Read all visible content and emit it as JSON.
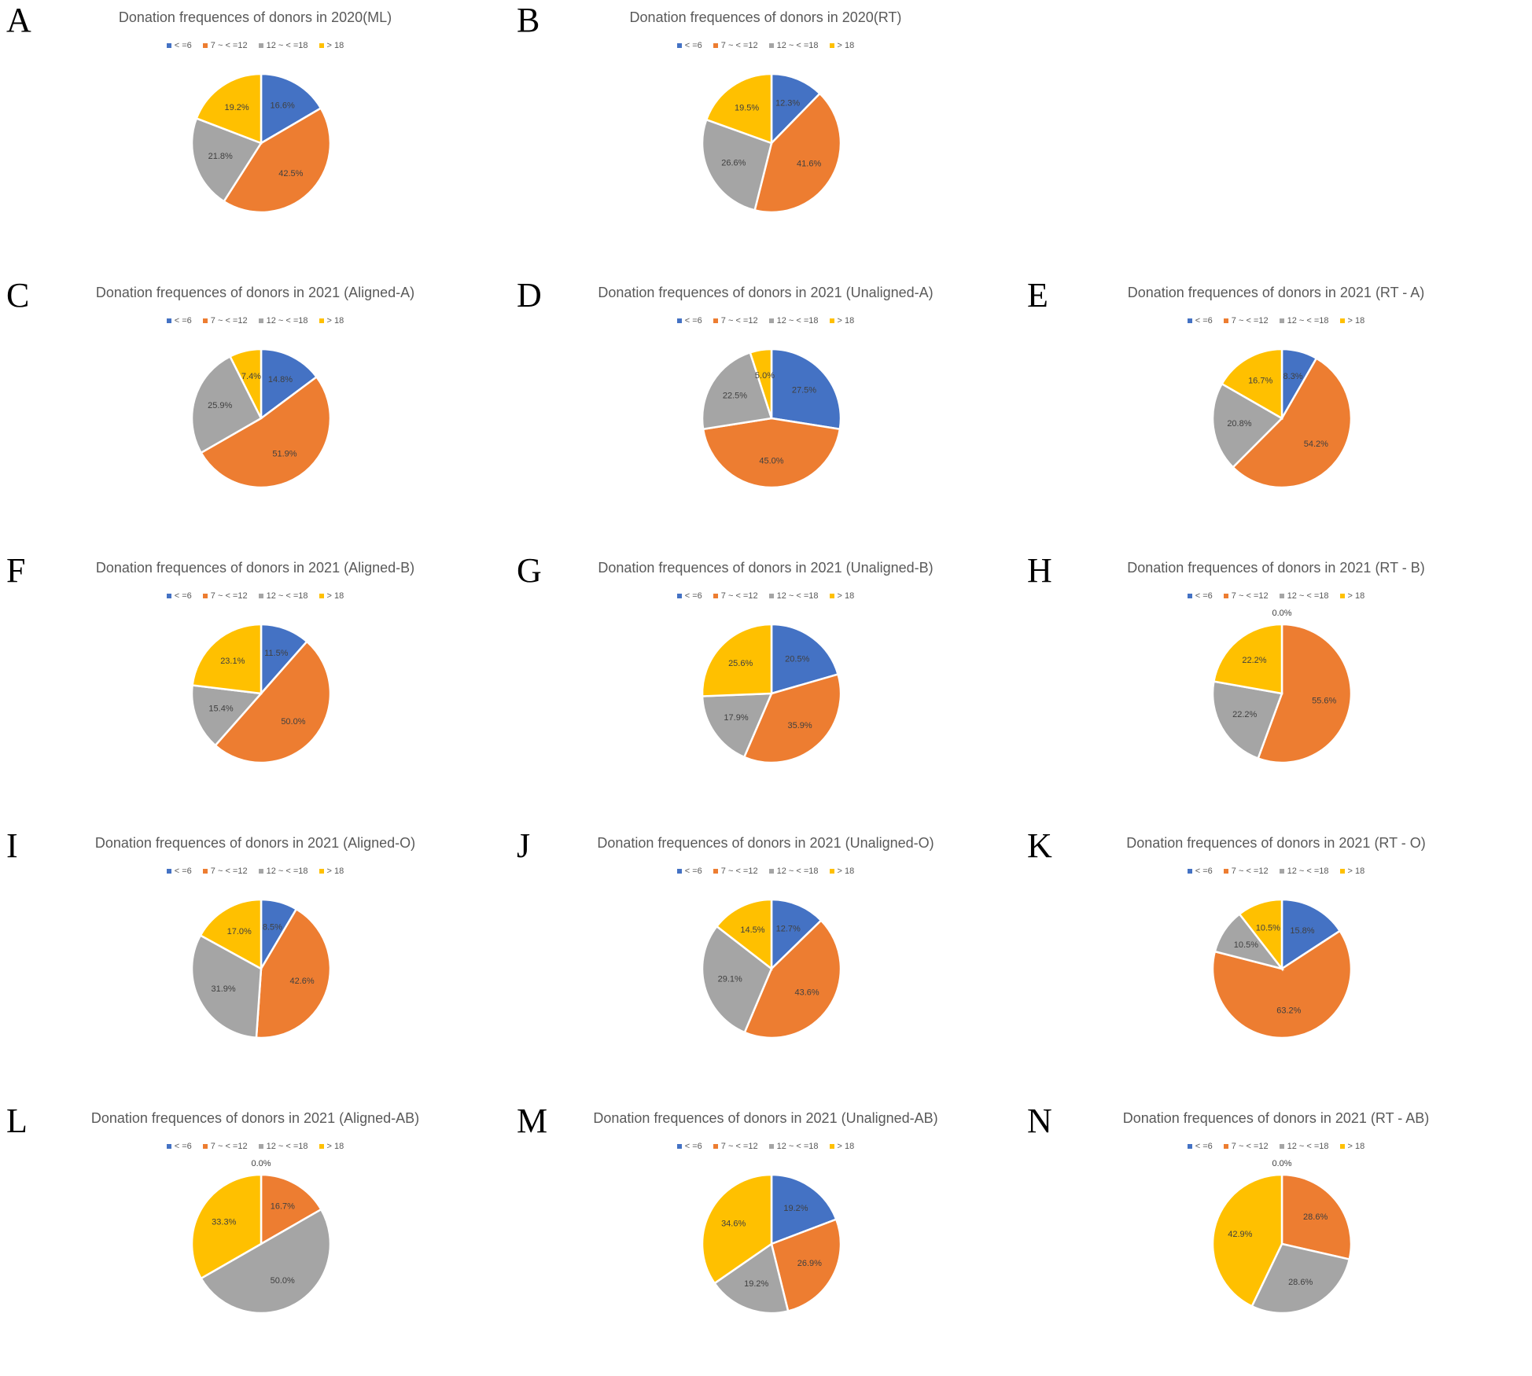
{
  "figure": {
    "legend": {
      "entries": [
        "< =6",
        "7 ~ < =12",
        "12 ~ < =18",
        "> 18"
      ],
      "colors": [
        "#4472c4",
        "#ed7d31",
        "#a5a5a5",
        "#ffc000"
      ]
    },
    "panels": [
      {
        "id": "A",
        "letter": "A",
        "title": "Donation frequences of donors in 2020(ML)",
        "present": true
      },
      {
        "id": "B",
        "letter": "B",
        "title": "Donation frequences of donors in 2020(RT)",
        "present": true
      },
      {
        "id": "blank",
        "letter": "",
        "title": "",
        "present": false
      },
      {
        "id": "C",
        "letter": "C",
        "title": "Donation frequences of donors in 2021 (Aligned-A)",
        "present": true
      },
      {
        "id": "D",
        "letter": "D",
        "title": "Donation frequences of donors in 2021 (Unaligned-A)",
        "present": true
      },
      {
        "id": "E",
        "letter": "E",
        "title": "Donation frequences of donors in 2021 (RT - A)",
        "present": true
      },
      {
        "id": "F",
        "letter": "F",
        "title": "Donation frequences of donors in 2021 (Aligned-B)",
        "present": true
      },
      {
        "id": "G",
        "letter": "G",
        "title": "Donation frequences of donors in 2021 (Unaligned-B)",
        "present": true
      },
      {
        "id": "H",
        "letter": "H",
        "title": "Donation frequences of donors in 2021 (RT - B)",
        "present": true
      },
      {
        "id": "I",
        "letter": "I",
        "title": "Donation frequences of donors in 2021 (Aligned-O)",
        "present": true
      },
      {
        "id": "J",
        "letter": "J",
        "title": "Donation frequences of donors in 2021 (Unaligned-O)",
        "present": true
      },
      {
        "id": "K",
        "letter": "K",
        "title": "Donation frequences of donors in 2021 (RT - O)",
        "present": true
      },
      {
        "id": "L",
        "letter": "L",
        "title": "Donation frequences of donors in 2021 (Aligned-AB)",
        "present": true
      },
      {
        "id": "M",
        "letter": "M",
        "title": "Donation frequences of donors in 2021 (Unaligned-AB)",
        "present": true
      },
      {
        "id": "N",
        "letter": "N",
        "title": "Donation frequences of donors in 2021 (RT - AB)",
        "present": true
      }
    ]
  },
  "chart_data": [
    {
      "type": "pie",
      "panel": "A",
      "title": "Donation frequences of donors in 2020(ML)",
      "categories": [
        "< =6",
        "7 ~ < =12",
        "12 ~ < =18",
        "> 18"
      ],
      "values": [
        16.6,
        42.5,
        21.8,
        19.2
      ],
      "labels": [
        "16.6%",
        "42.5%",
        "21.8%",
        "19.2%"
      ],
      "legend": "top"
    },
    {
      "type": "pie",
      "panel": "B",
      "title": "Donation frequences of donors in 2020(RT)",
      "categories": [
        "< =6",
        "7 ~ < =12",
        "12 ~ < =18",
        "> 18"
      ],
      "values": [
        12.3,
        41.6,
        26.6,
        19.5
      ],
      "labels": [
        "12.3%",
        "41.6%",
        "26.6%",
        "19.5%"
      ],
      "legend": "top"
    },
    {
      "type": "pie",
      "panel": "C",
      "title": "Donation frequences of donors in 2021 (Aligned-A)",
      "categories": [
        "< =6",
        "7 ~ < =12",
        "12 ~ < =18",
        "> 18"
      ],
      "values": [
        14.8,
        51.9,
        25.9,
        7.4
      ],
      "labels": [
        "14.8%",
        "51.9%",
        "25.9%",
        "7.4%"
      ],
      "legend": "top"
    },
    {
      "type": "pie",
      "panel": "D",
      "title": "Donation frequences of donors in 2021 (Unaligned-A)",
      "categories": [
        "< =6",
        "7 ~ < =12",
        "12 ~ < =18",
        "> 18"
      ],
      "values": [
        27.5,
        45.0,
        22.5,
        5.0
      ],
      "labels": [
        "27.5%",
        "45.0%",
        "22.5%",
        "5.0%"
      ],
      "legend": "top"
    },
    {
      "type": "pie",
      "panel": "E",
      "title": "Donation frequences of donors in 2021 (RT - A)",
      "categories": [
        "< =6",
        "7 ~ < =12",
        "12 ~ < =18",
        "> 18"
      ],
      "values": [
        8.3,
        54.2,
        20.8,
        16.7
      ],
      "labels": [
        "8.3%",
        "54.2%",
        "20.8%",
        "16.7%"
      ],
      "legend": "top"
    },
    {
      "type": "pie",
      "panel": "F",
      "title": "Donation frequences of donors in 2021 (Aligned-B)",
      "categories": [
        "< =6",
        "7 ~ < =12",
        "12 ~ < =18",
        "> 18"
      ],
      "values": [
        11.5,
        50.0,
        15.4,
        23.1
      ],
      "labels": [
        "11.5%",
        "50.0%",
        "15.4%",
        "23.1%"
      ],
      "legend": "top"
    },
    {
      "type": "pie",
      "panel": "G",
      "title": "Donation frequences of donors in 2021 (Unaligned-B)",
      "categories": [
        "< =6",
        "7 ~ < =12",
        "12 ~ < =18",
        "> 18"
      ],
      "values": [
        20.5,
        35.9,
        17.9,
        25.6
      ],
      "labels": [
        "20.5%",
        "35.9%",
        "17.9%",
        "25.6%"
      ],
      "legend": "top"
    },
    {
      "type": "pie",
      "panel": "H",
      "title": "Donation frequences of donors in 2021 (RT - B)",
      "categories": [
        "< =6",
        "7 ~ < =12",
        "12 ~ < =18",
        "> 18"
      ],
      "values": [
        0.0,
        55.6,
        22.2,
        22.2
      ],
      "labels": [
        "0.0%",
        "55.6%",
        "22.2%",
        "22.2%"
      ],
      "legend": "top"
    },
    {
      "type": "pie",
      "panel": "I",
      "title": "Donation frequences of donors in 2021 (Aligned-O)",
      "categories": [
        "< =6",
        "7 ~ < =12",
        "12 ~ < =18",
        "> 18"
      ],
      "values": [
        8.5,
        42.6,
        31.9,
        17.0
      ],
      "labels": [
        "8.5%",
        "42.6%",
        "31.9%",
        "17.0%"
      ],
      "legend": "top"
    },
    {
      "type": "pie",
      "panel": "J",
      "title": "Donation frequences of donors in 2021 (Unaligned-O)",
      "categories": [
        "< =6",
        "7 ~ < =12",
        "12 ~ < =18",
        "> 18"
      ],
      "values": [
        12.7,
        43.6,
        29.1,
        14.5
      ],
      "labels": [
        "12.7%",
        "43.6%",
        "29.1%",
        "14.5%"
      ],
      "legend": "top"
    },
    {
      "type": "pie",
      "panel": "K",
      "title": "Donation frequences of donors in 2021 (RT - O)",
      "categories": [
        "< =6",
        "7 ~ < =12",
        "12 ~ < =18",
        "> 18"
      ],
      "values": [
        15.8,
        63.2,
        10.5,
        10.5
      ],
      "labels": [
        "15.8%",
        "63.2%",
        "10.5%",
        "10.5%"
      ],
      "legend": "top"
    },
    {
      "type": "pie",
      "panel": "L",
      "title": "Donation frequences of donors in 2021 (Aligned-AB)",
      "categories": [
        "< =6",
        "7 ~ < =12",
        "12 ~ < =18",
        "> 18"
      ],
      "values": [
        0.0,
        16.7,
        50.0,
        33.3
      ],
      "labels": [
        "0.0%",
        "16.7%",
        "50.0%",
        "33.3%"
      ],
      "legend": "top"
    },
    {
      "type": "pie",
      "panel": "M",
      "title": "Donation frequences of donors in 2021 (Unaligned-AB)",
      "categories": [
        "< =6",
        "7 ~ < =12",
        "12 ~ < =18",
        "> 18"
      ],
      "values": [
        19.2,
        26.9,
        19.2,
        34.6
      ],
      "labels": [
        "19.2%",
        "26.9%",
        "19.2%",
        "34.6%"
      ],
      "legend": "top"
    },
    {
      "type": "pie",
      "panel": "N",
      "title": "Donation frequences of donors in 2021 (RT - AB)",
      "categories": [
        "< =6",
        "7 ~ < =12",
        "12 ~ < =18",
        "> 18"
      ],
      "values": [
        0.0,
        28.6,
        28.6,
        42.9
      ],
      "labels": [
        "0.0%",
        "28.6%",
        "28.6%",
        "42.9%"
      ],
      "legend": "top"
    }
  ]
}
